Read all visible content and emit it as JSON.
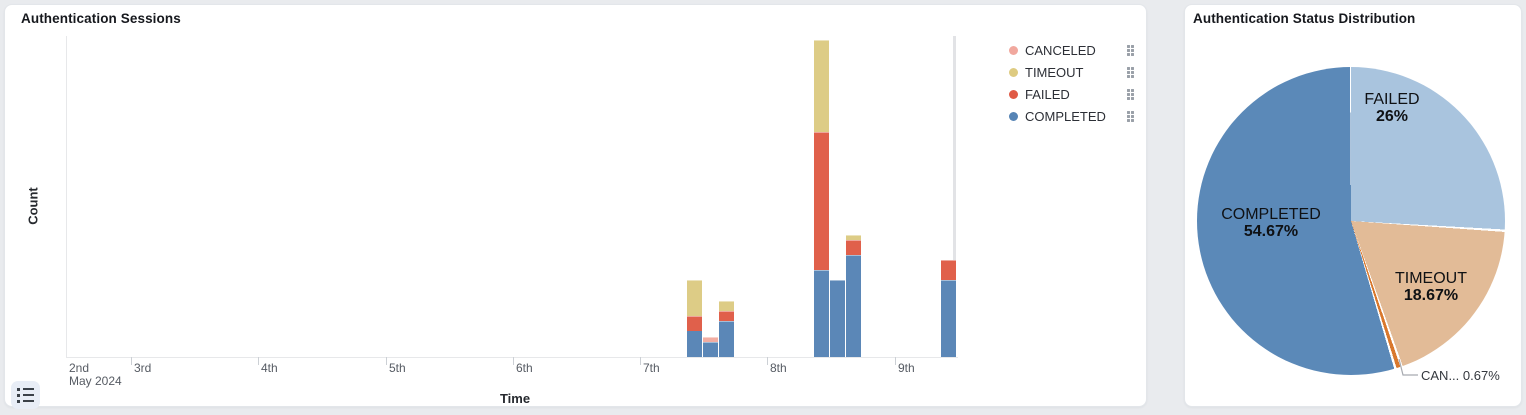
{
  "panels": {
    "sessions": {
      "title": "Authentication Sessions",
      "x_axis_label": "Time",
      "y_axis_label": "Count",
      "legend": [
        {
          "label": "CANCELED",
          "color": "#f1a89e"
        },
        {
          "label": "TIMEOUT",
          "color": "#decb81"
        },
        {
          "label": "FAILED",
          "color": "#e05a46"
        },
        {
          "label": "COMPLETED",
          "color": "#5684b5"
        }
      ],
      "icons": {
        "legend_handle": "drag-handle-icon",
        "bottom_left_button": "list-icon"
      }
    },
    "distribution": {
      "title": "Authentication Status Distribution"
    }
  },
  "chart_data": [
    {
      "type": "bar",
      "stacked": true,
      "title": "Authentication Sessions",
      "xlabel": "Time",
      "ylabel": "Count",
      "x_ticks": [
        "2nd",
        "3rd",
        "4th",
        "5th",
        "6th",
        "7th",
        "8th",
        "9th"
      ],
      "x_axis_month": "May 2024",
      "x": [
        "May 7 09:00",
        "May 7 12:00",
        "May 7 15:00",
        "May 8 09:00",
        "May 8 12:00",
        "May 8 15:00",
        "May 9 09:00"
      ],
      "series": [
        {
          "name": "COMPLETED",
          "color": "#5b87b7",
          "values": [
            5,
            3,
            7,
            17,
            15,
            20,
            15
          ]
        },
        {
          "name": "FAILED",
          "color": "#e0604b",
          "values": [
            3,
            0,
            2,
            27,
            0,
            3,
            4
          ]
        },
        {
          "name": "TIMEOUT",
          "color": "#ddcc86",
          "values": [
            7,
            0,
            2,
            18,
            0,
            1,
            0
          ]
        },
        {
          "name": "CANCELED",
          "color": "#f2ada2",
          "values": [
            0,
            1,
            0,
            0,
            0,
            0,
            0
          ]
        }
      ],
      "ylim": [
        0,
        64
      ],
      "grid": false,
      "legend_position": "top-right",
      "time_marker_color": "#e2e3e6"
    },
    {
      "type": "pie",
      "title": "Authentication Status Distribution",
      "start_angle": 0,
      "direction": "clockwise",
      "slices": [
        {
          "label": "FAILED",
          "pct": 26,
          "pct_label": "26%",
          "color": "#a9c4de"
        },
        {
          "label": "TIMEOUT",
          "pct": 18.67,
          "pct_label": "18.67%",
          "color": "#e2bb97"
        },
        {
          "label": "CANCELED",
          "pct": 0.67,
          "pct_label": "0.67%",
          "color": "#d9782d",
          "display_label": "CAN... 0.67%"
        },
        {
          "label": "COMPLETED",
          "pct": 54.67,
          "pct_label": "54.67%",
          "color": "#5b89b8"
        }
      ]
    }
  ]
}
